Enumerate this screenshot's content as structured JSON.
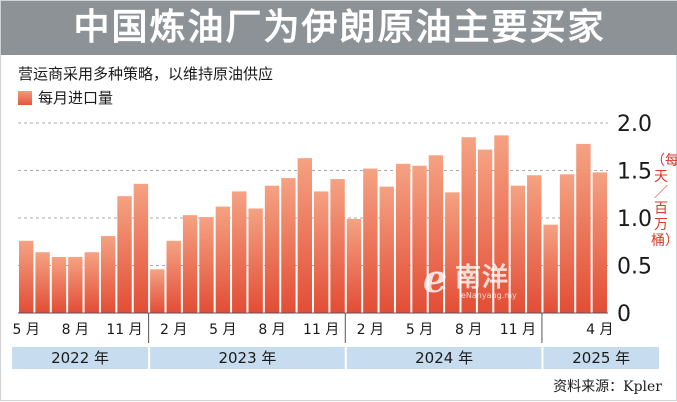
{
  "header": {
    "title": "中国炼油厂为伊朗原油主要买家",
    "subtitle": "营运商采用多种策略，以维持原油供应"
  },
  "legend": {
    "label": "每月进口量",
    "color": "#e8694c"
  },
  "unit_label": "（每天／百万桶）",
  "source": "资料来源：Kpler",
  "watermark": {
    "brand": "南洋",
    "initial": "e",
    "url": "eNanyang.my"
  },
  "colors": {
    "bar_top": "#f5a283",
    "bar_bottom": "#e24d35",
    "grid": "#a9a9a9",
    "year_band": "#c7dcee",
    "unit": "#d93a2b"
  },
  "chart_data": {
    "type": "bar",
    "title": "中国炼油厂为伊朗原油主要买家",
    "xlabel": "",
    "ylabel": "每天／百万桶",
    "ylim": [
      0,
      2.0
    ],
    "y_ticks": [
      "0",
      "0.5",
      "1.0",
      "1.5",
      "2.0"
    ],
    "y_tick_values": [
      0,
      0.5,
      1.0,
      1.5,
      2.0
    ],
    "grid": true,
    "legend_position": "top-left",
    "categories": [
      "2022-05",
      "2022-06",
      "2022-07",
      "2022-08",
      "2022-09",
      "2022-10",
      "2022-11",
      "2022-12",
      "2023-01",
      "2023-02",
      "2023-03",
      "2023-04",
      "2023-05",
      "2023-06",
      "2023-07",
      "2023-08",
      "2023-09",
      "2023-10",
      "2023-11",
      "2023-12",
      "2024-01",
      "2024-02",
      "2024-03",
      "2024-04",
      "2024-05",
      "2024-06",
      "2024-07",
      "2024-08",
      "2024-09",
      "2024-10",
      "2024-11",
      "2024-12",
      "2025-01",
      "2025-02",
      "2025-03",
      "2025-04"
    ],
    "series": [
      {
        "name": "每月进口量",
        "values": [
          0.76,
          0.64,
          0.59,
          0.59,
          0.64,
          0.81,
          1.23,
          1.36,
          0.46,
          0.76,
          1.03,
          1.01,
          1.12,
          1.28,
          1.1,
          1.34,
          1.42,
          1.63,
          1.28,
          1.41,
          0.99,
          1.52,
          1.33,
          1.57,
          1.55,
          1.66,
          1.27,
          1.85,
          1.72,
          1.87,
          1.34,
          1.45,
          0.93,
          1.46,
          1.78,
          1.48
        ]
      }
    ],
    "month_ticks": [
      {
        "index": 0,
        "label": "5 月"
      },
      {
        "index": 3,
        "label": "8 月"
      },
      {
        "index": 6,
        "label": "11 月"
      },
      {
        "index": 9,
        "label": "2 月"
      },
      {
        "index": 12,
        "label": "5 月"
      },
      {
        "index": 15,
        "label": "8 月"
      },
      {
        "index": 18,
        "label": "11 月"
      },
      {
        "index": 21,
        "label": "2 月"
      },
      {
        "index": 24,
        "label": "5 月"
      },
      {
        "index": 27,
        "label": "8 月"
      },
      {
        "index": 30,
        "label": "11 月"
      },
      {
        "index": 35,
        "label": "4 月"
      }
    ],
    "year_groups": [
      {
        "label": "2022 年",
        "start": 0,
        "end": 7
      },
      {
        "label": "2023 年",
        "start": 8,
        "end": 19
      },
      {
        "label": "2024 年",
        "start": 20,
        "end": 31
      },
      {
        "label": "2025 年",
        "start": 32,
        "end": 35
      }
    ]
  }
}
